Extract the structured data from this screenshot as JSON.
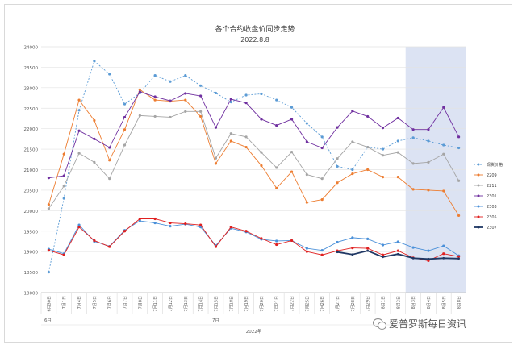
{
  "chart_data": {
    "type": "line",
    "title": "各个合约收盘价同步走势",
    "subtitle": "2022.8.8",
    "xlabel": "",
    "ylabel": "",
    "ylim": [
      18000,
      24000
    ],
    "yticks": [
      18000,
      18500,
      19000,
      19500,
      20000,
      20500,
      21000,
      21500,
      22000,
      22500,
      23000,
      23500,
      24000
    ],
    "categories": [
      "6月30日",
      "7月1日",
      "7月4日",
      "7月5日",
      "7月6日",
      "7月7日",
      "7月8日",
      "7月11日",
      "7月12日",
      "7月13日",
      "7月14日",
      "7月15日",
      "7月18日",
      "7月19日",
      "7月20日",
      "7月21日",
      "7月22日",
      "7月25日",
      "7月26日",
      "7月27日",
      "7月28日",
      "7月29日",
      "8月1日",
      "8月2日",
      "8月3日",
      "8月4日",
      "8月5日",
      "8月8日"
    ],
    "month_labels": [
      "6月",
      "7月"
    ],
    "year_label": "2022年",
    "highlight": {
      "from": "8月3日",
      "to": "8月8日",
      "color": "#dce3f3"
    },
    "grid": true,
    "legend_position": "right",
    "series": [
      {
        "name": "现货价格",
        "color": "#5b9bd5",
        "style": "dashed",
        "values": [
          18500,
          20300,
          22450,
          23650,
          23330,
          22600,
          22870,
          23300,
          23150,
          23300,
          23050,
          22870,
          22650,
          22820,
          22850,
          22700,
          22520,
          22130,
          21800,
          21080,
          21000,
          21550,
          21500,
          21700,
          21780,
          21700,
          21600,
          21530
        ]
      },
      {
        "name": "2209",
        "color": "#ed7d31",
        "style": "solid",
        "values": [
          20150,
          21380,
          22700,
          22200,
          21230,
          21980,
          22950,
          22700,
          22670,
          22700,
          22300,
          21150,
          21700,
          21550,
          21100,
          20550,
          20950,
          20200,
          20270,
          20680,
          20900,
          21000,
          20820,
          20820,
          20520,
          20500,
          20480,
          19880
        ]
      },
      {
        "name": "2211",
        "color": "#a5a5a5",
        "style": "solid",
        "values": [
          20050,
          20600,
          21400,
          21180,
          20780,
          21600,
          22320,
          22300,
          22280,
          22420,
          22420,
          21280,
          21880,
          21800,
          21420,
          21050,
          21430,
          20880,
          20780,
          21270,
          21680,
          21550,
          21350,
          21420,
          21150,
          21180,
          21380,
          20730
        ]
      },
      {
        "name": "2301",
        "color": "#7030a0",
        "style": "solid",
        "values": [
          20800,
          20850,
          21950,
          21750,
          21540,
          22280,
          22900,
          22780,
          22680,
          22860,
          22800,
          22030,
          22720,
          22630,
          22230,
          22080,
          22230,
          21680,
          21530,
          22030,
          22430,
          22300,
          22020,
          22260,
          21980,
          21980,
          22520,
          21800
        ]
      },
      {
        "name": "2303",
        "color": "#4a90d9",
        "style": "solid",
        "values": [
          19060,
          18950,
          19650,
          19250,
          19130,
          19520,
          19750,
          19700,
          19620,
          19670,
          19600,
          19150,
          19570,
          19480,
          19300,
          19260,
          19270,
          19080,
          19030,
          19230,
          19340,
          19310,
          19160,
          19240,
          19100,
          19020,
          19140,
          18900
        ]
      },
      {
        "name": "2305",
        "color": "#e02020",
        "style": "solid",
        "values": [
          19030,
          18920,
          19600,
          19270,
          19120,
          19500,
          19800,
          19800,
          19700,
          19680,
          19650,
          19120,
          19600,
          19500,
          19320,
          19170,
          19270,
          19000,
          18920,
          19020,
          19090,
          19080,
          18920,
          19020,
          18850,
          18780,
          18950,
          18880
        ]
      },
      {
        "name": "2307",
        "color": "#203864",
        "style": "bold",
        "start": "7月27日",
        "values": [
          null,
          null,
          null,
          null,
          null,
          null,
          null,
          null,
          null,
          null,
          null,
          null,
          null,
          null,
          null,
          null,
          null,
          null,
          null,
          18990,
          18930,
          19020,
          18870,
          18940,
          18840,
          18820,
          18840,
          18830
        ]
      }
    ]
  },
  "watermark": {
    "text": "爱普罗斯每日资讯",
    "icon": "wechat-icon"
  }
}
